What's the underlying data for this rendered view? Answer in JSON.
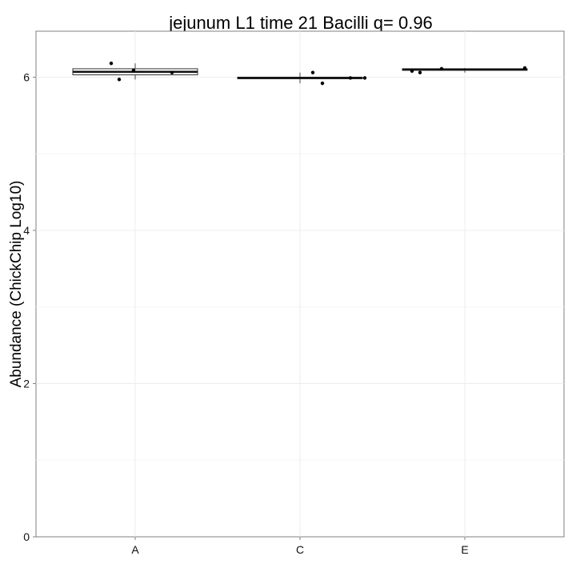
{
  "chart_data": {
    "type": "box",
    "title": "jejunum L1 time 21 Bacilli q= 0.96",
    "xlabel": "",
    "ylabel": "Abundance (ChickChip Log10)",
    "ylim": [
      0,
      6.6
    ],
    "yticks": [
      0,
      2,
      4,
      6
    ],
    "grid": true,
    "categories": [
      "A",
      "C",
      "E"
    ],
    "boxes": [
      {
        "category": "A",
        "min": 5.97,
        "q1": 6.03,
        "median": 6.07,
        "q3": 6.11,
        "max": 6.18
      },
      {
        "category": "C",
        "min": 5.92,
        "q1": 5.98,
        "median": 5.99,
        "q3": 6.0,
        "max": 6.06
      },
      {
        "category": "E",
        "min": 6.06,
        "q1": 6.09,
        "median": 6.1,
        "q3": 6.11,
        "max": 6.12
      }
    ],
    "points": [
      {
        "category": "A",
        "values": [
          6.18,
          5.97,
          6.09,
          6.06
        ]
      },
      {
        "category": "C",
        "values": [
          6.06,
          5.92,
          5.99,
          5.99
        ]
      },
      {
        "category": "E",
        "values": [
          6.08,
          6.06,
          6.11,
          6.12
        ]
      }
    ]
  }
}
